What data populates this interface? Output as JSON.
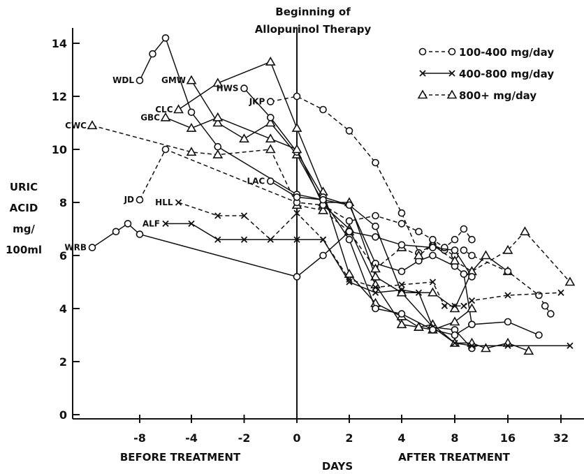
{
  "chart_data": {
    "type": "line",
    "title_lines": [
      "Beginning of",
      "Allopurinol Therapy"
    ],
    "ylabel_lines": [
      "URIC",
      "ACID",
      "mg/",
      "100ml"
    ],
    "xlabel": "DAYS",
    "before_label": "BEFORE TREATMENT",
    "after_label": "AFTER TREATMENT",
    "x_ticks": [
      "-8",
      "-4",
      "-2",
      "0",
      "2",
      "4",
      "8",
      "16",
      "32"
    ],
    "y_ticks": [
      "0",
      "2",
      "4",
      "6",
      "8",
      "10",
      "12",
      "14"
    ],
    "ylim": [
      0,
      14
    ],
    "x_scale": "piecewise: before therapy days -10..0; after therapy days 0..4 linear then log2 (4, 8, 16, 32)",
    "grid": false,
    "legend_position": "top-right",
    "legend": [
      {
        "name": "100-400 mg/day",
        "marker": "circle",
        "dash": "dashed"
      },
      {
        "name": "400-800 mg/day",
        "marker": "x",
        "dash": "solid"
      },
      {
        "name": "800+ mg/day",
        "marker": "triangle",
        "dash": "dashed"
      }
    ],
    "series": [
      {
        "name": "WDL",
        "marker": "circle",
        "dash": "solid",
        "points": [
          [
            -8,
            12.6
          ],
          [
            -7,
            13.6
          ],
          [
            -6,
            14.2
          ],
          [
            -4,
            11.4
          ],
          [
            -3,
            10.1
          ],
          [
            0,
            8.3
          ],
          [
            2,
            7.9
          ],
          [
            3,
            7.1
          ],
          [
            4,
            4.6
          ],
          [
            6,
            3.3
          ],
          [
            8,
            3.2
          ],
          [
            10,
            2.5
          ]
        ]
      },
      {
        "name": "CLC",
        "marker": "triangle",
        "dash": "solid",
        "points": [
          [
            -5,
            11.5
          ],
          [
            -3,
            12.5
          ],
          [
            -1,
            13.3
          ],
          [
            0,
            10.8
          ],
          [
            1,
            8.4
          ],
          [
            2,
            5.3
          ],
          [
            3,
            4.2
          ],
          [
            4,
            3.7
          ],
          [
            5,
            3.3
          ],
          [
            6,
            3.4
          ],
          [
            8,
            2.7
          ],
          [
            10,
            2.7
          ],
          [
            12,
            2.5
          ],
          [
            16,
            2.7
          ],
          [
            21,
            2.4
          ]
        ]
      },
      {
        "name": "GMW",
        "marker": "triangle",
        "dash": "solid",
        "points": [
          [
            -4,
            12.6
          ],
          [
            -3,
            11.0
          ],
          [
            -2,
            10.4
          ],
          [
            -1,
            11.0
          ],
          [
            0,
            9.8
          ],
          [
            1,
            8.0
          ],
          [
            2,
            8.0
          ],
          [
            3,
            5.2
          ],
          [
            4,
            4.6
          ],
          [
            6,
            4.6
          ],
          [
            8,
            4.0
          ],
          [
            10,
            5.4
          ],
          [
            12,
            6.0
          ],
          [
            16,
            5.4
          ]
        ]
      },
      {
        "name": "HWS",
        "marker": "circle",
        "dash": "solid",
        "points": [
          [
            -2,
            12.3
          ],
          [
            -1,
            11.2
          ],
          [
            0,
            9.9
          ],
          [
            1,
            8.2
          ],
          [
            2,
            7.9
          ],
          [
            3,
            5.7
          ],
          [
            4,
            5.4
          ],
          [
            5,
            5.8
          ],
          [
            6,
            6.0
          ],
          [
            8,
            5.6
          ],
          [
            9,
            5.3
          ],
          [
            10,
            3.4
          ],
          [
            16,
            3.5
          ],
          [
            24,
            3.0
          ]
        ]
      },
      {
        "name": "JKP",
        "marker": "circle",
        "dash": "dashed",
        "points": [
          [
            -1,
            11.8
          ],
          [
            0,
            12.0
          ],
          [
            1,
            11.5
          ],
          [
            2,
            10.7
          ],
          [
            3,
            9.5
          ],
          [
            4,
            7.6
          ],
          [
            5,
            6.1
          ],
          [
            6,
            6.4
          ],
          [
            7,
            6.2
          ],
          [
            8,
            6.0
          ],
          [
            9,
            6.2
          ],
          [
            10,
            6.0
          ],
          [
            16,
            5.4
          ],
          [
            24,
            4.5
          ],
          [
            26,
            4.1
          ],
          [
            28,
            3.8
          ]
        ]
      },
      {
        "name": "GBC",
        "marker": "triangle",
        "dash": "solid",
        "points": [
          [
            -6,
            11.2
          ],
          [
            -4,
            10.8
          ],
          [
            -3,
            11.2
          ],
          [
            -1,
            10.4
          ],
          [
            0,
            10.0
          ],
          [
            1,
            7.9
          ],
          [
            2,
            7.0
          ],
          [
            3,
            4.9
          ],
          [
            4,
            3.4
          ],
          [
            5,
            3.3
          ],
          [
            6,
            3.2
          ],
          [
            8,
            3.5
          ],
          [
            10,
            4.0
          ]
        ]
      },
      {
        "name": "CWC",
        "marker": "triangle",
        "dash": "dashed",
        "points": [
          [
            -10,
            10.9
          ],
          [
            -4,
            9.9
          ],
          [
            -3,
            9.8
          ],
          [
            -1,
            10.0
          ],
          [
            0,
            7.9
          ],
          [
            1,
            7.7
          ],
          [
            2,
            6.9
          ],
          [
            3,
            5.5
          ],
          [
            4,
            6.3
          ],
          [
            5,
            6.0
          ],
          [
            6,
            6.4
          ],
          [
            8,
            5.8
          ],
          [
            10,
            5.4
          ],
          [
            16,
            6.2
          ],
          [
            20,
            6.9
          ],
          [
            36,
            5.0
          ]
        ]
      },
      {
        "name": "JD",
        "marker": "circle",
        "dash": "dashed",
        "points": [
          [
            -8,
            8.1
          ],
          [
            -6,
            10.0
          ],
          [
            0,
            8.0
          ],
          [
            1,
            7.9
          ],
          [
            2,
            7.3
          ],
          [
            3,
            7.5
          ],
          [
            4,
            7.2
          ],
          [
            5,
            6.9
          ],
          [
            6,
            6.6
          ],
          [
            7,
            6.3
          ],
          [
            8,
            6.6
          ],
          [
            9,
            7.0
          ],
          [
            10,
            6.6
          ]
        ]
      },
      {
        "name": "HLL",
        "marker": "x",
        "dash": "dashed",
        "points": [
          [
            -5,
            8.0
          ],
          [
            -3,
            7.5
          ],
          [
            -2,
            7.5
          ],
          [
            -1,
            6.6
          ],
          [
            0,
            7.6
          ],
          [
            1,
            6.6
          ],
          [
            2,
            5.1
          ],
          [
            3,
            4.8
          ],
          [
            4,
            4.9
          ],
          [
            6,
            5.0
          ],
          [
            7,
            4.1
          ],
          [
            8,
            4.1
          ],
          [
            9,
            4.1
          ],
          [
            10,
            4.3
          ],
          [
            16,
            4.5
          ],
          [
            32,
            4.6
          ]
        ]
      },
      {
        "name": "ALF",
        "marker": "x",
        "dash": "solid",
        "points": [
          [
            -6,
            7.2
          ],
          [
            -4,
            7.2
          ],
          [
            -3,
            6.6
          ],
          [
            -2,
            6.6
          ],
          [
            0,
            6.6
          ],
          [
            1,
            6.6
          ],
          [
            2,
            5.0
          ],
          [
            3,
            4.6
          ],
          [
            4,
            4.7
          ],
          [
            5,
            4.6
          ],
          [
            6,
            3.3
          ],
          [
            8,
            2.7
          ],
          [
            10,
            2.6
          ],
          [
            16,
            2.6
          ],
          [
            36,
            2.6
          ]
        ]
      },
      {
        "name": "WRB",
        "marker": "circle",
        "dash": "solid",
        "points": [
          [
            -10,
            6.3
          ],
          [
            -9,
            6.9
          ],
          [
            -8.5,
            7.2
          ],
          [
            -8,
            6.8
          ],
          [
            0,
            5.2
          ],
          [
            1,
            6.0
          ],
          [
            2,
            6.9
          ],
          [
            3,
            6.7
          ],
          [
            4,
            6.4
          ],
          [
            6,
            6.3
          ],
          [
            8,
            6.2
          ],
          [
            10,
            5.2
          ]
        ]
      },
      {
        "name": "LAC",
        "marker": "circle",
        "dash": "solid",
        "points": [
          [
            -1,
            8.8
          ],
          [
            0,
            8.2
          ],
          [
            1,
            8.1
          ],
          [
            2,
            6.6
          ],
          [
            3,
            4.0
          ],
          [
            4,
            3.8
          ],
          [
            6,
            3.2
          ],
          [
            8,
            3.0
          ],
          [
            10,
            3.4
          ]
        ]
      }
    ],
    "point_labels": [
      "WDL",
      "CLC",
      "GMW",
      "HWS",
      "JKP",
      "GBC",
      "CWC",
      "JD",
      "HLL",
      "ALF",
      "WRB",
      "LAC"
    ]
  }
}
